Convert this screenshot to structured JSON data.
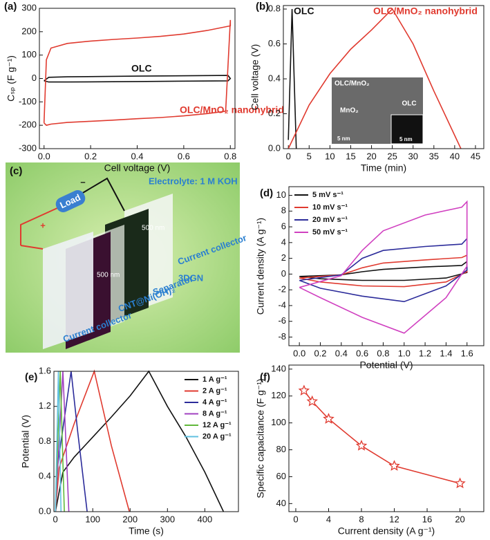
{
  "chart_data": [
    {
      "type": "line",
      "label": "(a)",
      "xlabel": "Cell voltage (V)",
      "ylabel": "Cₛₚ (F g⁻¹)",
      "xlim": [
        -0.02,
        0.82
      ],
      "ylim": [
        -300,
        300
      ],
      "xticks": [
        {
          "value": 0,
          "label": "0.0"
        },
        0.2,
        0.4,
        0.6,
        0.8
      ],
      "yticks": [
        -300,
        -200,
        -100,
        0,
        100,
        200,
        300
      ],
      "series": [
        {
          "name": "OLC",
          "color": "#111111",
          "x": [
            0,
            0.02,
            0.1,
            0.4,
            0.79,
            0.8,
            0.79,
            0.4,
            0.1,
            0.02,
            0
          ],
          "values": [
            -10,
            5,
            7,
            10,
            13,
            0,
            -10,
            -13,
            -15,
            -15,
            -10
          ]
        },
        {
          "name": "OLC/MnO₂ nanohybrid",
          "color": "#e03a2f",
          "x": [
            0,
            0.01,
            0.03,
            0.1,
            0.2,
            0.3,
            0.4,
            0.5,
            0.6,
            0.7,
            0.8,
            0.8,
            0.78,
            0.7,
            0.6,
            0.5,
            0.4,
            0.3,
            0.2,
            0.1,
            0.03,
            0.01,
            0
          ],
          "values": [
            -190,
            80,
            130,
            150,
            160,
            167,
            173,
            180,
            190,
            205,
            225,
            250,
            -140,
            -150,
            -160,
            -167,
            -172,
            -178,
            -183,
            -188,
            -195,
            -200,
            -190
          ]
        }
      ]
    },
    {
      "type": "line",
      "label": "(b)",
      "xlabel": "Time (min)",
      "ylabel": "Cell voltage (V)",
      "xlim": [
        -1.2,
        47
      ],
      "ylim": [
        0,
        0.82
      ],
      "xticks": [
        0,
        5,
        10,
        15,
        20,
        25,
        30,
        35,
        40,
        45
      ],
      "yticks": [
        {
          "value": 0,
          "label": "0.0"
        },
        0.2,
        0.4,
        0.6,
        0.8
      ],
      "inset_labels": [
        "OLC/MnO₂",
        "MnO₂",
        "OLC",
        "5 nm",
        "5 nm"
      ],
      "series": [
        {
          "name": "OLC",
          "color": "#111111",
          "x": [
            0,
            0.9,
            1.9
          ],
          "values": [
            0.05,
            0.8,
            0
          ]
        },
        {
          "name": "OLC/MnO₂ nanohybrid",
          "color": "#e03a2f",
          "x": [
            0,
            5,
            10,
            15,
            20,
            25,
            30,
            35,
            41.5
          ],
          "values": [
            0,
            0.25,
            0.43,
            0.57,
            0.68,
            0.8,
            0.6,
            0.33,
            0
          ]
        }
      ]
    },
    {
      "type": "line",
      "label": "(d)",
      "xlabel": "Potential (V)",
      "ylabel": "Current density (A g⁻¹)",
      "xlim": [
        -0.1,
        1.76
      ],
      "ylim": [
        -9.1,
        11.1
      ],
      "legend": "upper left",
      "xticks": [
        {
          "value": 0,
          "label": "0.0"
        },
        0.2,
        0.4,
        0.6,
        0.8,
        {
          "value": 1,
          "label": "1.0"
        },
        1.2,
        1.4,
        1.6
      ],
      "yticks": [
        -8,
        -6,
        -4,
        -2,
        0,
        2,
        4,
        6,
        8,
        10
      ],
      "series": [
        {
          "name": "5 mV s⁻¹",
          "color": "#111111",
          "x": [
            0,
            0.4,
            0.6,
            0.8,
            1.2,
            1.55,
            1.6,
            1.6,
            1.4,
            1.0,
            0.6,
            0.2,
            0
          ],
          "values": [
            -0.3,
            -0.1,
            0.3,
            0.6,
            0.9,
            1.1,
            1.6,
            0.2,
            -0.5,
            -0.8,
            -0.8,
            -0.6,
            -0.3
          ]
        },
        {
          "name": "10 mV s⁻¹",
          "color": "#e03a2f",
          "x": [
            0,
            0.4,
            0.6,
            0.8,
            1.2,
            1.55,
            1.6,
            1.6,
            1.4,
            1.0,
            0.6,
            0.2,
            0
          ],
          "values": [
            -0.5,
            -0.1,
            0.8,
            1.4,
            1.8,
            2.1,
            2.4,
            0.3,
            -1.0,
            -1.6,
            -1.5,
            -1.0,
            -0.5
          ]
        },
        {
          "name": "20 mV s⁻¹",
          "color": "#2b2b9a",
          "x": [
            0,
            0.4,
            0.6,
            0.8,
            1.2,
            1.55,
            1.6,
            1.6,
            1.4,
            1.0,
            0.6,
            0.2,
            0
          ],
          "values": [
            -0.8,
            -0.1,
            2.0,
            3.0,
            3.5,
            3.8,
            4.5,
            0.5,
            -1.5,
            -3.5,
            -2.8,
            -1.8,
            -0.8
          ]
        },
        {
          "name": "50 mV s⁻¹",
          "color": "#d040c0",
          "x": [
            0,
            0.4,
            0.6,
            0.8,
            1.2,
            1.55,
            1.6,
            1.6,
            1.4,
            1.0,
            0.6,
            0.2,
            0
          ],
          "values": [
            -1.7,
            -0.2,
            3.0,
            5.5,
            7.5,
            8.5,
            9.2,
            1.0,
            -3.0,
            -7.5,
            -5.5,
            -3.0,
            -1.7
          ]
        }
      ]
    },
    {
      "type": "line",
      "label": "(e)",
      "xlabel": "Time (s)",
      "ylabel": "Potential (V)",
      "xlim": [
        -4,
        490
      ],
      "ylim": [
        0,
        1.6
      ],
      "legend": "upper right",
      "xticks": [
        0,
        100,
        200,
        300,
        400
      ],
      "yticks": [
        {
          "value": 0,
          "label": "0.0"
        },
        0.4,
        0.8,
        1.2,
        1.6
      ],
      "series": [
        {
          "name": "1 A g⁻¹",
          "color": "#111111",
          "x": [
            0,
            20,
            50,
            100,
            150,
            200,
            250,
            300,
            350,
            400,
            450
          ],
          "values": [
            0,
            0.45,
            0.62,
            0.85,
            1.08,
            1.32,
            1.6,
            1.2,
            0.85,
            0.45,
            0
          ]
        },
        {
          "name": "2 A g⁻¹",
          "color": "#e03a2f",
          "x": [
            0,
            10,
            50,
            104,
            150,
            198
          ],
          "values": [
            0,
            0.5,
            1.0,
            1.6,
            0.75,
            0
          ]
        },
        {
          "name": "4 A g⁻¹",
          "color": "#2b2b9a",
          "x": [
            0,
            5,
            42,
            60,
            85
          ],
          "values": [
            0,
            0.5,
            1.6,
            0.9,
            0
          ]
        },
        {
          "name": "8 A g⁻¹",
          "color": "#a040c0",
          "x": [
            0,
            20,
            36
          ],
          "values": [
            0,
            1.6,
            0
          ]
        },
        {
          "name": "12 A g⁻¹",
          "color": "#60b83a",
          "x": [
            0,
            13,
            24
          ],
          "values": [
            0,
            1.6,
            0
          ]
        },
        {
          "name": "20 A g⁻¹",
          "color": "#60c0e0",
          "x": [
            0,
            8,
            15
          ],
          "values": [
            0,
            1.6,
            0
          ]
        }
      ]
    },
    {
      "type": "line",
      "marker": "star",
      "label": "(f)",
      "xlabel": "Current density (A g⁻¹)",
      "ylabel": "Specific capacitance (F g⁻¹)",
      "xlim": [
        -0.84,
        22.9
      ],
      "ylim": [
        34,
        143
      ],
      "xticks": [
        0,
        4,
        8,
        12,
        16,
        20
      ],
      "yticks": [
        40,
        60,
        80,
        100,
        120,
        140
      ],
      "series": [
        {
          "color": "#e03a2f",
          "x": [
            1,
            2,
            4,
            8,
            12,
            20
          ],
          "values": [
            124,
            116,
            103,
            83,
            68,
            55
          ]
        }
      ]
    }
  ],
  "diagram": {
    "label": "(c)",
    "electrolyte": "Electrolyte: 1 M KOH",
    "load": "Load",
    "plus": "+",
    "minus": "–",
    "collector_back": "Current collector",
    "graphene": "3DGN",
    "separator": "Separator",
    "electrode": "CNT@Ni(OH)₂",
    "collector_front": "Current collector",
    "scale_back": "500 nm",
    "scale_front": "500 nm"
  }
}
